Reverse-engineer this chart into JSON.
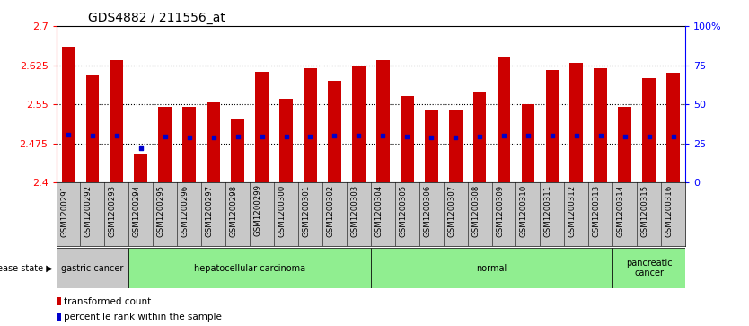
{
  "title": "GDS4882 / 211556_at",
  "samples": [
    "GSM1200291",
    "GSM1200292",
    "GSM1200293",
    "GSM1200294",
    "GSM1200295",
    "GSM1200296",
    "GSM1200297",
    "GSM1200298",
    "GSM1200299",
    "GSM1200300",
    "GSM1200301",
    "GSM1200302",
    "GSM1200303",
    "GSM1200304",
    "GSM1200305",
    "GSM1200306",
    "GSM1200307",
    "GSM1200308",
    "GSM1200309",
    "GSM1200310",
    "GSM1200311",
    "GSM1200312",
    "GSM1200313",
    "GSM1200314",
    "GSM1200315",
    "GSM1200316"
  ],
  "transformed_count": [
    2.66,
    2.605,
    2.635,
    2.455,
    2.545,
    2.545,
    2.553,
    2.523,
    2.613,
    2.56,
    2.62,
    2.595,
    2.623,
    2.635,
    2.565,
    2.538,
    2.54,
    2.575,
    2.64,
    2.55,
    2.615,
    2.63,
    2.62,
    2.545,
    2.6,
    2.61
  ],
  "percentile_rank_pct": [
    30.5,
    30.0,
    30.0,
    22.0,
    29.5,
    29.0,
    29.0,
    29.5,
    29.5,
    29.5,
    29.5,
    30.0,
    30.0,
    30.0,
    29.5,
    29.0,
    29.0,
    29.5,
    30.0,
    30.0,
    30.0,
    30.0,
    30.0,
    29.5,
    29.5,
    29.5
  ],
  "ylim_left": [
    2.4,
    2.7
  ],
  "ylim_right": [
    0,
    100
  ],
  "yticks_left": [
    2.4,
    2.475,
    2.55,
    2.625,
    2.7
  ],
  "ytick_labels_left": [
    "2.4",
    "2.475",
    "2.55",
    "2.625",
    "2.7"
  ],
  "yticks_right": [
    0,
    25,
    50,
    75,
    100
  ],
  "ytick_labels_right": [
    "0",
    "25",
    "50",
    "75",
    "100%"
  ],
  "bar_color": "#cc0000",
  "dot_color": "#0000cc",
  "disease_groups": [
    {
      "label": "gastric cancer",
      "start": 0,
      "end": 3,
      "color": "#c8c8c8"
    },
    {
      "label": "hepatocellular carcinoma",
      "start": 3,
      "end": 13,
      "color": "#90ee90"
    },
    {
      "label": "normal",
      "start": 13,
      "end": 23,
      "color": "#90ee90"
    },
    {
      "label": "pancreatic\ncancer",
      "start": 23,
      "end": 26,
      "color": "#90ee90"
    }
  ],
  "legend_items": [
    {
      "color": "#cc0000",
      "label": "transformed count"
    },
    {
      "color": "#0000cc",
      "label": "percentile rank within the sample"
    }
  ],
  "background_gray": "#c8c8c8",
  "title_fontsize": 10,
  "tick_fontsize": 8,
  "bar_width": 0.55
}
